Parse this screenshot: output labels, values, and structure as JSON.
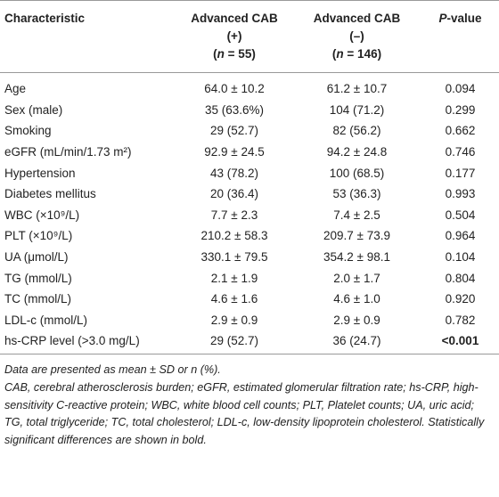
{
  "table": {
    "header": [
      [
        {
          "text": "Characteristic"
        }
      ],
      [
        {
          "text": "Advanced CAB"
        },
        {
          "text": "(+)"
        },
        {
          "parts": [
            "(",
            "n",
            " = 55)"
          ]
        }
      ],
      [
        {
          "text": "Advanced CAB"
        },
        {
          "text": "(–)"
        },
        {
          "parts": [
            "(",
            "n",
            " = 146)"
          ]
        }
      ],
      [
        {
          "text": "P",
          "suffix": "-value"
        }
      ]
    ],
    "rows": [
      [
        "Age",
        "64.0 ± 10.2",
        "61.2 ± 10.7",
        "0.094"
      ],
      [
        "Sex (male)",
        "35 (63.6%)",
        "104 (71.2)",
        "0.299"
      ],
      [
        "Smoking",
        "29 (52.7)",
        "82 (56.2)",
        "0.662"
      ],
      [
        "eGFR (mL/min/1.73 m²)",
        "92.9 ± 24.5",
        "94.2 ± 24.8",
        "0.746"
      ],
      [
        "Hypertension",
        "43 (78.2)",
        "100 (68.5)",
        "0.177"
      ],
      [
        "Diabetes mellitus",
        "20 (36.4)",
        "53 (36.3)",
        "0.993"
      ],
      [
        "WBC (×10⁹/L)",
        "7.7 ± 2.3",
        "7.4 ± 2.5",
        "0.504"
      ],
      [
        "PLT (×10⁹/L)",
        "210.2 ± 58.3",
        "209.7 ± 73.9",
        "0.964"
      ],
      [
        "UA (μmol/L)",
        "330.1 ± 79.5",
        "354.2 ± 98.1",
        "0.104"
      ],
      [
        "TG (mmol/L)",
        "2.1 ± 1.9",
        "2.0 ± 1.7",
        "0.804"
      ],
      [
        "TC (mmol/L)",
        "4.6 ± 1.6",
        "4.6 ± 1.0",
        "0.920"
      ],
      [
        "LDL-c (mmol/L)",
        "2.9 ± 0.9",
        "2.9 ± 0.9",
        "0.782"
      ],
      [
        "hs-CRP level (>3.0 mg/L)",
        "29 (52.7)",
        "36 (24.7)",
        "<0.001"
      ]
    ],
    "footnotes": [
      "Data are presented as mean ± SD or n (%).",
      "CAB, cerebral atherosclerosis burden; eGFR, estimated glomerular filtration rate; hs-CRP, high-sensitivity C-reactive protein; WBC, white blood cell counts; PLT, Platelet counts; UA, uric acid; TG, total triglyceride; TC, total cholesterol; LDL-c, low-density lipoprotein cholesterol. Statistically significant differences are shown in bold."
    ]
  }
}
